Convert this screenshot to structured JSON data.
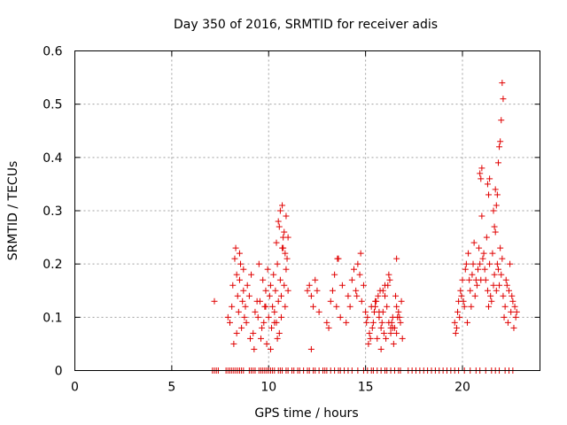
{
  "chart_data": {
    "type": "scatter",
    "title": "Day 350 of 2016, SRMTID for receiver adis",
    "xlabel": "GPS time / hours",
    "ylabel": "SRMTID / TECUs",
    "xlim": [
      0,
      24
    ],
    "ylim": [
      0,
      0.6
    ],
    "xticks": [
      0,
      5,
      10,
      15,
      20
    ],
    "xtick_labels": [
      "0",
      "5",
      "10",
      "15",
      "20"
    ],
    "yticks": [
      0,
      0.1,
      0.2,
      0.3,
      0.4,
      0.5,
      0.6
    ],
    "ytick_labels": [
      "0",
      "0.1",
      "0.2",
      "0.3",
      "0.4",
      "0.5",
      "0.6"
    ],
    "grid": true,
    "marker": "+",
    "color": "#e00000",
    "series": [
      {
        "name": "SRMTID",
        "x": [
          7.1,
          7.2,
          7.3,
          7.4,
          7.8,
          7.9,
          8.0,
          8.1,
          8.2,
          8.3,
          8.4,
          8.5,
          8.6,
          8.7,
          9.0,
          9.1,
          9.2,
          9.3,
          9.5,
          9.6,
          9.7,
          9.8,
          9.9,
          10.0,
          10.1,
          10.2,
          10.3,
          10.5,
          10.6,
          10.7,
          10.9,
          11.0,
          11.2,
          11.3,
          11.5,
          11.6,
          11.8,
          12.0,
          12.1,
          12.3,
          12.4,
          12.6,
          12.8,
          12.9,
          13.0,
          13.2,
          13.4,
          13.6,
          13.7,
          13.9,
          14.1,
          14.3,
          14.6,
          14.9,
          15.1,
          15.3,
          15.4,
          15.6,
          15.8,
          16.0,
          16.1,
          16.3,
          16.5,
          16.7,
          16.8,
          17.2,
          17.4,
          17.6,
          17.8,
          18.0,
          18.2,
          18.4,
          18.6,
          18.8,
          19.0,
          19.2,
          19.4,
          19.6,
          19.8,
          20.1,
          20.4,
          20.7,
          20.9,
          21.2,
          21.5,
          21.7,
          21.9,
          22.2,
          22.4,
          22.6,
          7.2,
          7.9,
          8.0,
          8.1,
          8.15,
          8.25,
          8.3,
          8.35,
          8.4,
          8.45,
          8.5,
          8.55,
          8.6,
          8.65,
          8.7,
          8.75,
          8.8,
          8.85,
          8.9,
          9.0,
          9.1,
          9.2,
          9.3,
          9.4,
          9.5,
          9.6,
          9.7,
          9.75,
          9.8,
          9.85,
          9.9,
          9.95,
          10.0,
          10.05,
          10.1,
          10.15,
          10.2,
          10.25,
          10.3,
          10.35,
          10.4,
          10.45,
          10.5,
          10.55,
          10.6,
          10.65,
          10.7,
          10.75,
          10.8,
          10.85,
          10.9,
          10.95,
          11.0,
          8.2,
          8.35,
          8.5,
          8.7,
          9.05,
          9.25,
          9.45,
          9.55,
          9.65,
          9.85,
          10.1,
          10.3,
          10.4,
          10.5,
          10.6,
          10.7,
          10.8,
          10.9,
          11.0,
          10.55,
          10.75,
          10.85,
          10.45,
          10.65,
          12.0,
          12.1,
          12.2,
          12.3,
          12.4,
          12.5,
          12.6,
          13.0,
          13.1,
          13.2,
          13.3,
          13.4,
          13.5,
          13.6,
          13.7,
          13.8,
          14.0,
          14.1,
          14.2,
          14.3,
          14.4,
          14.5,
          14.6,
          14.7,
          14.8,
          14.9,
          12.2,
          13.55,
          14.55,
          14.75,
          15.0,
          15.1,
          15.2,
          15.3,
          15.4,
          15.5,
          15.6,
          15.7,
          15.8,
          15.9,
          16.0,
          16.1,
          16.2,
          16.3,
          16.4,
          16.5,
          16.6,
          16.7,
          16.8,
          16.9,
          15.15,
          15.35,
          15.55,
          15.75,
          15.95,
          16.15,
          16.35,
          16.55,
          16.75,
          15.25,
          15.45,
          15.65,
          15.85,
          16.05,
          16.25,
          16.45,
          16.65,
          16.85,
          15.05,
          15.5,
          15.9,
          16.2,
          16.6,
          15.7,
          16.0,
          16.4,
          16.6,
          15.8,
          16.3,
          19.6,
          19.7,
          19.8,
          19.9,
          20.0,
          20.1,
          20.2,
          20.3,
          20.4,
          20.5,
          20.6,
          20.7,
          20.8,
          20.9,
          21.0,
          21.1,
          21.2,
          21.3,
          21.4,
          21.5,
          21.6,
          21.7,
          21.8,
          21.9,
          22.0,
          22.1,
          22.2,
          22.3,
          22.4,
          22.5,
          22.6,
          22.7,
          22.8,
          19.65,
          19.75,
          19.85,
          19.95,
          20.05,
          20.15,
          20.25,
          20.35,
          20.45,
          20.55,
          20.65,
          20.75,
          20.85,
          20.95,
          21.05,
          21.15,
          21.25,
          21.35,
          21.45,
          21.55,
          21.65,
          21.75,
          21.85,
          21.95,
          22.05,
          22.15,
          22.25,
          22.35,
          22.45,
          22.55,
          22.65,
          22.75,
          20.9,
          21.0,
          21.3,
          21.4,
          21.6,
          21.7,
          21.8,
          21.85,
          21.9,
          21.95,
          22.0,
          22.05,
          21.75,
          21.65,
          22.1,
          21.35,
          20.95
        ],
        "y": [
          0,
          0,
          0,
          0,
          0,
          0,
          0,
          0,
          0,
          0,
          0,
          0,
          0,
          0,
          0,
          0,
          0,
          0,
          0,
          0,
          0,
          0,
          0,
          0,
          0,
          0,
          0,
          0,
          0,
          0,
          0,
          0,
          0,
          0,
          0,
          0,
          0,
          0,
          0,
          0,
          0,
          0,
          0,
          0,
          0,
          0,
          0,
          0,
          0,
          0,
          0,
          0,
          0,
          0,
          0,
          0,
          0,
          0,
          0,
          0,
          0,
          0,
          0,
          0,
          0,
          0,
          0,
          0,
          0,
          0,
          0,
          0,
          0,
          0,
          0,
          0,
          0,
          0,
          0,
          0,
          0,
          0,
          0,
          0,
          0,
          0,
          0,
          0,
          0,
          0,
          0.13,
          0.1,
          0.09,
          0.12,
          0.16,
          0.21,
          0.23,
          0.18,
          0.14,
          0.11,
          0.17,
          0.2,
          0.08,
          0.13,
          0.15,
          0.1,
          0.12,
          0.09,
          0.16,
          0.14,
          0.18,
          0.07,
          0.11,
          0.13,
          0.2,
          0.06,
          0.17,
          0.09,
          0.12,
          0.15,
          0.05,
          0.19,
          0.1,
          0.14,
          0.16,
          0.08,
          0.12,
          0.18,
          0.11,
          0.15,
          0.09,
          0.2,
          0.13,
          0.07,
          0.17,
          0.14,
          0.23,
          0.25,
          0.16,
          0.12,
          0.19,
          0.21,
          0.15,
          0.05,
          0.07,
          0.22,
          0.19,
          0.06,
          0.04,
          0.1,
          0.13,
          0.08,
          0.12,
          0.04,
          0.09,
          0.24,
          0.28,
          0.3,
          0.31,
          0.26,
          0.29,
          0.25,
          0.27,
          0.23,
          0.22,
          0.06,
          0.1,
          0.15,
          0.16,
          0.14,
          0.12,
          0.17,
          0.15,
          0.11,
          0.09,
          0.08,
          0.13,
          0.15,
          0.18,
          0.12,
          0.21,
          0.1,
          0.16,
          0.09,
          0.14,
          0.12,
          0.17,
          0.19,
          0.15,
          0.2,
          0.18,
          0.13,
          0.16,
          0.04,
          0.21,
          0.14,
          0.22,
          0.11,
          0.1,
          0.07,
          0.12,
          0.09,
          0.13,
          0.06,
          0.1,
          0.08,
          0.11,
          0.14,
          0.12,
          0.09,
          0.07,
          0.1,
          0.08,
          0.12,
          0.11,
          0.09,
          0.06,
          0.05,
          0.08,
          0.13,
          0.15,
          0.07,
          0.16,
          0.09,
          0.14,
          0.1,
          0.06,
          0.11,
          0.14,
          0.09,
          0.06,
          0.17,
          0.05,
          0.1,
          0.13,
          0.09,
          0.12,
          0.15,
          0.18,
          0.07,
          0.11,
          0.16,
          0.08,
          0.21,
          0.04,
          0.08,
          0.09,
          0.08,
          0.13,
          0.15,
          0.17,
          0.12,
          0.2,
          0.22,
          0.15,
          0.18,
          0.24,
          0.17,
          0.19,
          0.2,
          0.29,
          0.22,
          0.17,
          0.15,
          0.2,
          0.13,
          0.16,
          0.26,
          0.2,
          0.16,
          0.18,
          0.14,
          0.12,
          0.16,
          0.15,
          0.11,
          0.13,
          0.12,
          0.11,
          0.07,
          0.11,
          0.1,
          0.14,
          0.13,
          0.19,
          0.09,
          0.17,
          0.12,
          0.2,
          0.14,
          0.16,
          0.23,
          0.17,
          0.21,
          0.19,
          0.25,
          0.12,
          0.14,
          0.22,
          0.18,
          0.15,
          0.19,
          0.23,
          0.21,
          0.1,
          0.17,
          0.09,
          0.2,
          0.14,
          0.08,
          0.1,
          0.37,
          0.38,
          0.35,
          0.36,
          0.3,
          0.34,
          0.33,
          0.39,
          0.42,
          0.43,
          0.47,
          0.54,
          0.31,
          0.27,
          0.51,
          0.33,
          0.36
        ]
      }
    ]
  }
}
